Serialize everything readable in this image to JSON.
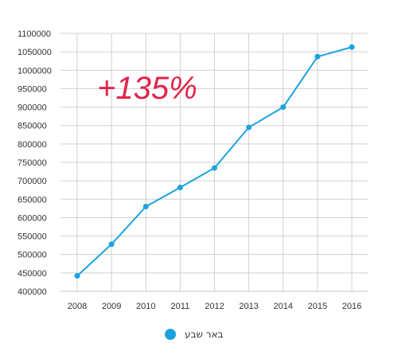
{
  "chart_data": {
    "type": "line",
    "x": [
      "2008",
      "2009",
      "2010",
      "2011",
      "2012",
      "2013",
      "2014",
      "2015",
      "2016"
    ],
    "series": [
      {
        "name": "באר שבע",
        "values": [
          442000,
          528000,
          630000,
          682000,
          735000,
          845000,
          900000,
          1037000,
          1063000
        ]
      }
    ],
    "yticks": [
      400000,
      450000,
      500000,
      550000,
      600000,
      650000,
      700000,
      750000,
      800000,
      850000,
      900000,
      950000,
      1000000,
      1050000,
      1100000
    ],
    "ylim": [
      400000,
      1100000
    ],
    "grid": true,
    "annotation": "+135%",
    "legend_position": "bottom",
    "colors": {
      "series": "#1ba3e0",
      "grid": "#d0d0d0",
      "annotation": "#e0244a"
    }
  }
}
